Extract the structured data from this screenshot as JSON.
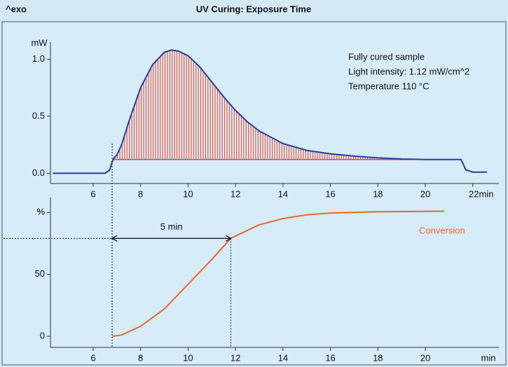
{
  "chart_data": [
    {
      "type": "line",
      "title": "UV Curing: Exposure Time",
      "corner_label": "^exo",
      "ylabel": "mW",
      "annotations": [
        "Fully cured sample",
        "Light intensity: 1.12 mW/cm^2",
        "Temperature 110 °C"
      ],
      "xlim": [
        4.2,
        23.1
      ],
      "xticks": [
        6,
        8,
        10,
        12,
        14,
        16,
        18,
        20,
        {
          "value": 22,
          "label": "22min"
        }
      ],
      "ylim": [
        -0.09,
        1.15
      ],
      "yticks": [
        {
          "value": 0,
          "label": "0.0"
        },
        0.5,
        {
          "value": 1,
          "label": "1.0"
        }
      ],
      "series": [
        {
          "color": "#2e3a9e",
          "x": [
            4.3,
            6.5,
            6.7,
            6.8,
            6.9,
            7.0,
            7.2,
            7.5,
            8.0,
            8.5,
            9.0,
            9.3,
            9.6,
            10.0,
            10.5,
            11,
            11.5,
            12,
            12.5,
            13,
            14,
            15,
            16,
            17,
            18,
            19,
            20,
            21,
            21.5,
            21.6,
            21.7,
            22,
            22.6
          ],
          "values": [
            0,
            0,
            0.03,
            0.1,
            0.14,
            0.16,
            0.25,
            0.45,
            0.75,
            0.95,
            1.06,
            1.08,
            1.07,
            1.03,
            0.93,
            0.8,
            0.67,
            0.55,
            0.45,
            0.37,
            0.26,
            0.2,
            0.17,
            0.15,
            0.135,
            0.125,
            0.12,
            0.12,
            0.12,
            0.08,
            0.03,
            0.01,
            0.01
          ]
        },
        {
          "color": "#ee4422",
          "role": "baseline",
          "x": [
            6.8,
            21.5
          ],
          "values": [
            0.12,
            0.12
          ]
        }
      ]
    },
    {
      "type": "line",
      "xlabel": "min",
      "xlim": [
        4.2,
        23.1
      ],
      "xticks": [
        6,
        8,
        10,
        12,
        14,
        16,
        18,
        20
      ],
      "ylim": [
        -9,
        112
      ],
      "yticks": [
        0,
        50,
        {
          "value": 100,
          "label": "%"
        }
      ],
      "annotations": [
        {
          "text": "5 min",
          "x": [
            6.8,
            11.8
          ],
          "y": 79
        }
      ],
      "series": [
        {
          "name": "Conversion",
          "color": "#f06428",
          "x": [
            6.8,
            7.2,
            8,
            9,
            10,
            10.5,
            11,
            11.8,
            13,
            14,
            15,
            16,
            18,
            20.8
          ],
          "values": [
            0,
            1,
            8,
            22,
            42,
            52,
            62,
            79,
            90,
            95,
            98,
            99.5,
            100.5,
            101
          ]
        }
      ]
    }
  ]
}
